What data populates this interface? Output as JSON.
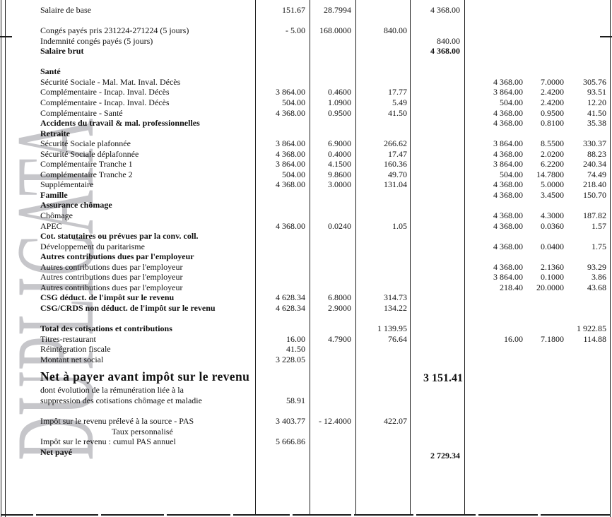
{
  "watermark": "DUPLICATA",
  "rows": [
    {
      "label": "Salaire de base",
      "b": "151.67",
      "t": "28.7994",
      "g": "4 368.00"
    },
    {
      "blank": true
    },
    {
      "label": "Congés payés pris 231224-271224 (5 jours)",
      "b": "- 5.00",
      "t": "168.0000",
      "m": "840.00"
    },
    {
      "label": "Indemnité congés payés (5 jours)",
      "g": "840.00"
    },
    {
      "label": "Salaire brut",
      "style": "b",
      "vb": true,
      "g": "4 368.00"
    },
    {
      "blank": true
    },
    {
      "label": "Santé",
      "style": "b"
    },
    {
      "label": "Sécurité Sociale - Mal. Mat. Inval. Décès",
      "eb": "4 368.00",
      "et": "7.0000",
      "em": "305.76"
    },
    {
      "label": "Complémentaire - Incap. Inval. Décès",
      "b": "3 864.00",
      "t": "0.4600",
      "m": "17.77",
      "eb": "3 864.00",
      "et": "2.4200",
      "em": "93.51"
    },
    {
      "label": "Complémentaire - Incap. Inval. Décès",
      "b": "504.00",
      "t": "1.0900",
      "m": "5.49",
      "eb": "504.00",
      "et": "2.4200",
      "em": "12.20"
    },
    {
      "label": "Complémentaire - Santé",
      "b": "4 368.00",
      "t": "0.9500",
      "m": "41.50",
      "eb": "4 368.00",
      "et": "0.9500",
      "em": "41.50"
    },
    {
      "label": "Accidents du travail & mal. professionnelles",
      "style": "b",
      "eb": "4 368.00",
      "et": "0.8100",
      "em": "35.38"
    },
    {
      "label": "Retraite",
      "style": "b"
    },
    {
      "label": "Sécurité Sociale plafonnée",
      "b": "3 864.00",
      "t": "6.9000",
      "m": "266.62",
      "eb": "3 864.00",
      "et": "8.5500",
      "em": "330.37"
    },
    {
      "label": "Sécurité Sociale déplafonnée",
      "b": "4 368.00",
      "t": "0.4000",
      "m": "17.47",
      "eb": "4 368.00",
      "et": "2.0200",
      "em": "88.23"
    },
    {
      "label": "Complémentaire Tranche 1",
      "b": "3 864.00",
      "t": "4.1500",
      "m": "160.36",
      "eb": "3 864.00",
      "et": "6.2200",
      "em": "240.34"
    },
    {
      "label": "Complémentaire Tranche 2",
      "b": "504.00",
      "t": "9.8600",
      "m": "49.70",
      "eb": "504.00",
      "et": "14.7800",
      "em": "74.49"
    },
    {
      "label": "Supplémentaire",
      "b": "4 368.00",
      "t": "3.0000",
      "m": "131.04",
      "eb": "4 368.00",
      "et": "5.0000",
      "em": "218.40"
    },
    {
      "label": "Famille",
      "style": "b",
      "eb": "4 368.00",
      "et": "3.4500",
      "em": "150.70"
    },
    {
      "label": "Assurance chômage",
      "style": "b"
    },
    {
      "label": "Chômage",
      "eb": "4 368.00",
      "et": "4.3000",
      "em": "187.82"
    },
    {
      "label": "APEC",
      "b": "4 368.00",
      "t": "0.0240",
      "m": "1.05",
      "eb": "4 368.00",
      "et": "0.0360",
      "em": "1.57"
    },
    {
      "label": "Cot. statutaires ou prévues par la conv. coll.",
      "style": "b"
    },
    {
      "label": "Développement du paritarisme",
      "eb": "4 368.00",
      "et": "0.0400",
      "em": "1.75"
    },
    {
      "label": "Autres contributions dues par l'employeur",
      "style": "b"
    },
    {
      "label": "Autres contributions dues par l'employeur",
      "eb": "4 368.00",
      "et": "2.1360",
      "em": "93.29"
    },
    {
      "label": "Autres contributions dues par l'employeur",
      "eb": "3 864.00",
      "et": "0.1000",
      "em": "3.86"
    },
    {
      "label": "Autres contributions dues par l'employeur",
      "eb": "218.40",
      "et": "20.0000",
      "em": "43.68"
    },
    {
      "label": "CSG déduct. de l'impôt sur le revenu",
      "style": "b",
      "b": "4 628.34",
      "t": "6.8000",
      "m": "314.73"
    },
    {
      "label": "CSG/CRDS non déduct. de l'impôt sur le revenu",
      "style": "b",
      "b": "4 628.34",
      "t": "2.9000",
      "m": "134.22"
    },
    {
      "blank": true
    },
    {
      "label": "Total des cotisations et contributions",
      "style": "b",
      "m": "1 139.95",
      "em": "1 922.85"
    },
    {
      "label": "Titres-restaurant",
      "b": "16.00",
      "t": "4.7900",
      "m": "76.64",
      "eb": "16.00",
      "et": "7.1800",
      "em": "114.88"
    },
    {
      "label": "Réintégration fiscale",
      "b": "41.50"
    },
    {
      "label": "Montant net social",
      "b": "3 228.05"
    },
    {
      "blank": true
    },
    {
      "label": "Net à payer avant impôt sur le revenu",
      "style": "big",
      "g": "3 151.41"
    },
    {
      "label": "dont évolution de la rémunération liée à la"
    },
    {
      "label": "suppression des cotisations chômage et maladie",
      "b": "58.91"
    },
    {
      "blank": true
    },
    {
      "label": "Impôt sur le revenu prélevé à la source - PAS",
      "b": "3 403.77",
      "t": "- 12.4000",
      "m": "422.07"
    },
    {
      "label": "Taux personnalisé",
      "style": "i"
    },
    {
      "label": "Impôt sur le revenu : cumul PAS annuel",
      "b": "5 666.86"
    },
    {
      "label": "Net payé",
      "style": "b",
      "vb": true,
      "g": "2 729.34"
    }
  ]
}
